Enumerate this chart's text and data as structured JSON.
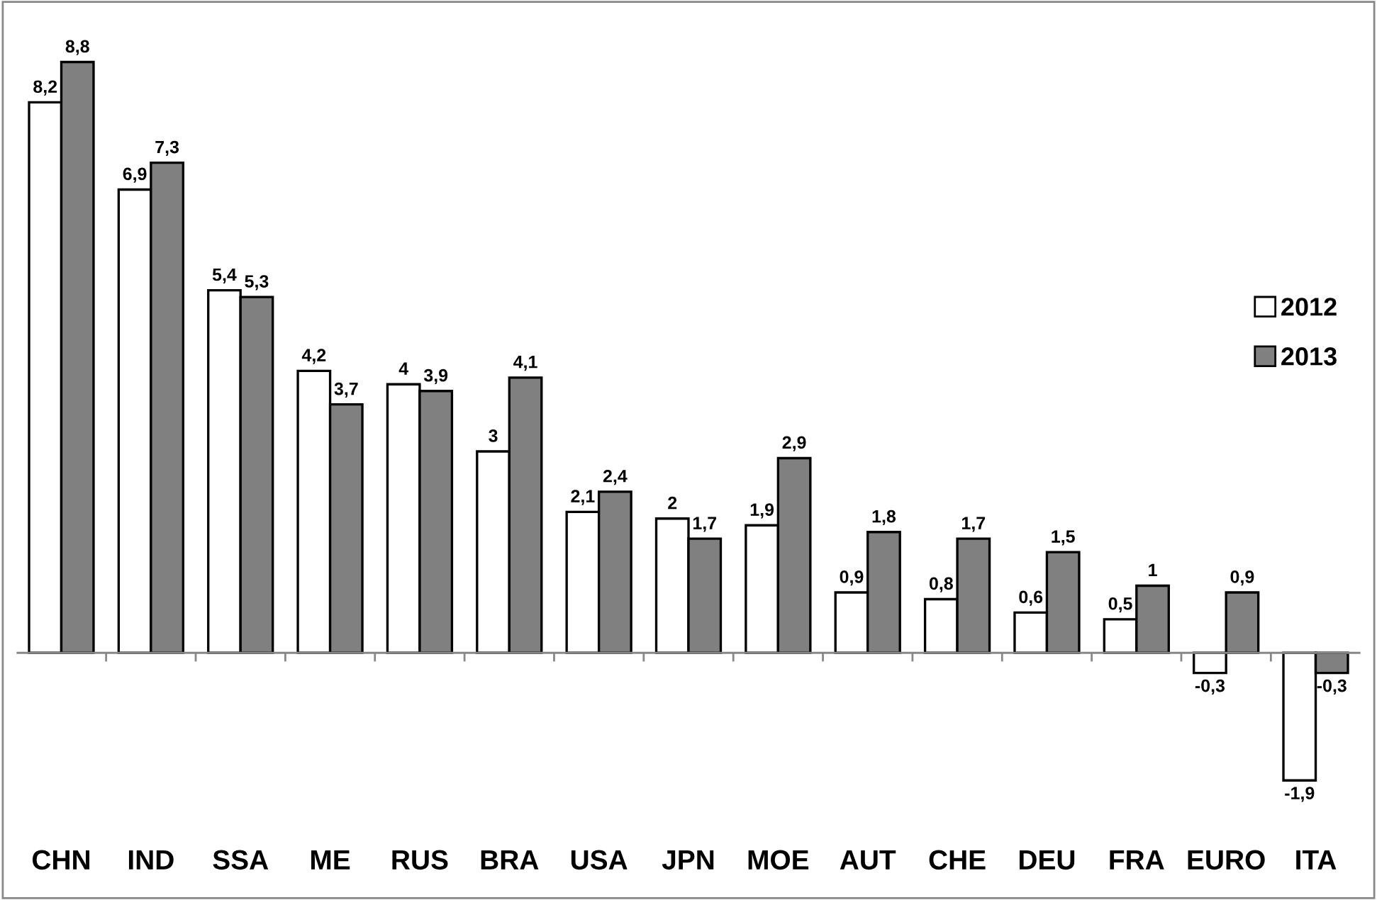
{
  "chart_data": {
    "type": "bar",
    "categories": [
      "CHN",
      "IND",
      "SSA",
      "ME",
      "RUS",
      "BRA",
      "USA",
      "JPN",
      "MOE",
      "AUT",
      "CHE",
      "DEU",
      "FRA",
      "EURO",
      "ITA"
    ],
    "series": [
      {
        "name": "2012",
        "color": "#ffffff",
        "values": [
          8.2,
          6.9,
          5.4,
          4.2,
          4,
          3,
          2.1,
          2,
          1.9,
          0.9,
          0.8,
          0.6,
          0.5,
          -0.3,
          -1.9
        ],
        "value_labels": [
          "8,2",
          "6,9",
          "5,4",
          "4,2",
          "4",
          "3",
          "2,1",
          "2",
          "1,9",
          "0,9",
          "0,8",
          "0,6",
          "0,5",
          "-0,3",
          "-1,9"
        ]
      },
      {
        "name": "2013",
        "color": "#808080",
        "values": [
          8.8,
          7.3,
          5.3,
          3.7,
          3.9,
          4.1,
          2.4,
          1.7,
          2.9,
          1.8,
          1.7,
          1.5,
          1,
          0.9,
          -0.3
        ],
        "value_labels": [
          "8,8",
          "7,3",
          "5,3",
          "3,7",
          "3,9",
          "4,1",
          "2,4",
          "1,7",
          "2,9",
          "1,8",
          "1,7",
          "1,5",
          "1",
          "0,9",
          "-0,3"
        ]
      }
    ],
    "legend": "right",
    "grid": false
  }
}
